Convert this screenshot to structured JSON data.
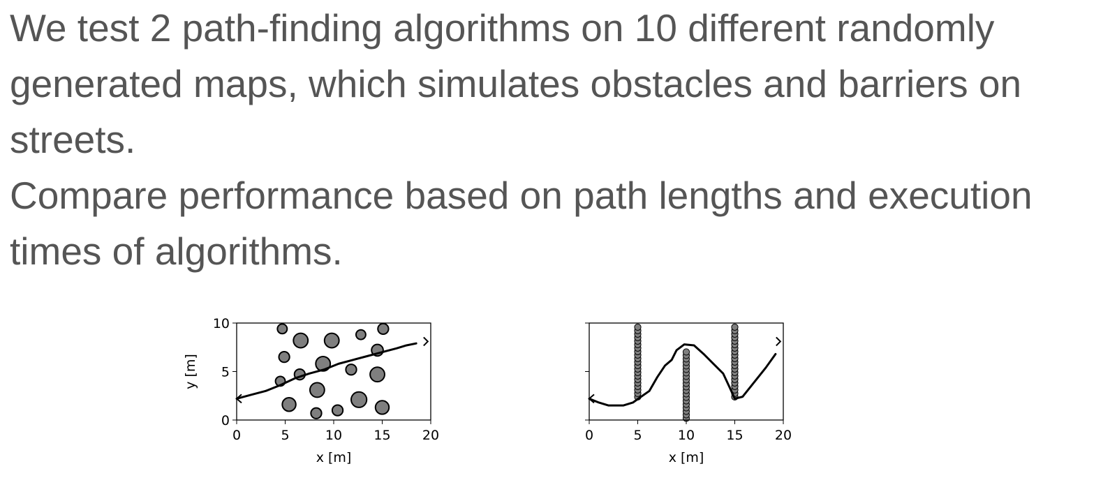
{
  "text": {
    "paragraph1": "We test 2 path-finding algorithms on 10 different randomly generated maps, which simulates obstacles and barriers on streets.",
    "paragraph2": "Compare performance based on path lengths and execution times of algorithms."
  },
  "colors": {
    "text": "#555555",
    "obstacle_fill": "#7f7f7f",
    "line": "#000000"
  },
  "chart_data": [
    {
      "type": "scatter",
      "title": "",
      "xlabel": "x [m]",
      "ylabel": "y [m]",
      "xlim": [
        0,
        20
      ],
      "ylim": [
        0,
        10
      ],
      "xticks": [
        "0",
        "5",
        "10",
        "15",
        "20"
      ],
      "yticks": [
        "0",
        "5",
        "10"
      ],
      "grid": false,
      "obstacles": [
        {
          "x": 4.7,
          "y": 9.4,
          "r": 0.5
        },
        {
          "x": 6.6,
          "y": 8.2,
          "r": 0.75
        },
        {
          "x": 9.8,
          "y": 8.2,
          "r": 0.75
        },
        {
          "x": 12.8,
          "y": 8.8,
          "r": 0.5
        },
        {
          "x": 15.1,
          "y": 9.4,
          "r": 0.55
        },
        {
          "x": 4.9,
          "y": 6.5,
          "r": 0.55
        },
        {
          "x": 8.9,
          "y": 5.8,
          "r": 0.75
        },
        {
          "x": 14.5,
          "y": 7.2,
          "r": 0.6
        },
        {
          "x": 6.5,
          "y": 4.7,
          "r": 0.55
        },
        {
          "x": 11.8,
          "y": 5.2,
          "r": 0.55
        },
        {
          "x": 14.5,
          "y": 4.7,
          "r": 0.75
        },
        {
          "x": 4.5,
          "y": 4.0,
          "r": 0.5
        },
        {
          "x": 8.3,
          "y": 3.1,
          "r": 0.75
        },
        {
          "x": 5.4,
          "y": 1.6,
          "r": 0.7
        },
        {
          "x": 12.6,
          "y": 2.1,
          "r": 0.8
        },
        {
          "x": 8.2,
          "y": 0.7,
          "r": 0.55
        },
        {
          "x": 10.4,
          "y": 1.0,
          "r": 0.55
        },
        {
          "x": 15.0,
          "y": 1.3,
          "r": 0.7
        }
      ],
      "path": {
        "x": [
          0.0,
          1.5,
          3.0,
          4.5,
          6.0,
          7.5,
          9.0,
          10.5,
          12.0,
          13.5,
          15.0,
          16.5,
          17.5,
          18.5
        ],
        "y": [
          2.2,
          2.6,
          3.0,
          3.6,
          4.3,
          4.8,
          5.2,
          5.8,
          6.2,
          6.6,
          7.0,
          7.4,
          7.7,
          7.9
        ]
      },
      "start_marker": {
        "x": 0.0,
        "y": 2.2
      },
      "goal_marker": {
        "x": 19.7,
        "y": 8.1
      }
    },
    {
      "type": "scatter",
      "title": "",
      "xlabel": "x [m]",
      "ylabel": "",
      "xlim": [
        0,
        20
      ],
      "ylim": [
        0,
        10
      ],
      "xticks": [
        "0",
        "5",
        "10",
        "15",
        "20"
      ],
      "yticks": [],
      "grid": false,
      "walls": [
        {
          "x": 5,
          "y_from": 2.2,
          "y_to": 10
        },
        {
          "x": 10,
          "y_from": 0,
          "y_to": 7.5
        },
        {
          "x": 15,
          "y_from": 2.2,
          "y_to": 10
        }
      ],
      "path": {
        "x": [
          0.0,
          1.0,
          2.0,
          3.5,
          4.5,
          5.2,
          6.2,
          7.0,
          7.8,
          8.5,
          9.0,
          9.8,
          10.8,
          11.8,
          12.8,
          13.8,
          14.5,
          15.0,
          15.8,
          17.0,
          18.2,
          19.2
        ],
        "y": [
          2.2,
          1.8,
          1.5,
          1.5,
          1.8,
          2.3,
          3.0,
          4.4,
          5.6,
          6.2,
          7.2,
          7.8,
          7.7,
          6.8,
          5.8,
          4.8,
          3.3,
          2.2,
          2.4,
          3.9,
          5.4,
          6.8
        ],
        "note": ""
      },
      "start_marker": {
        "x": 0.0,
        "y": 2.2
      },
      "goal_marker": {
        "x": 19.7,
        "y": 8.1
      }
    }
  ]
}
